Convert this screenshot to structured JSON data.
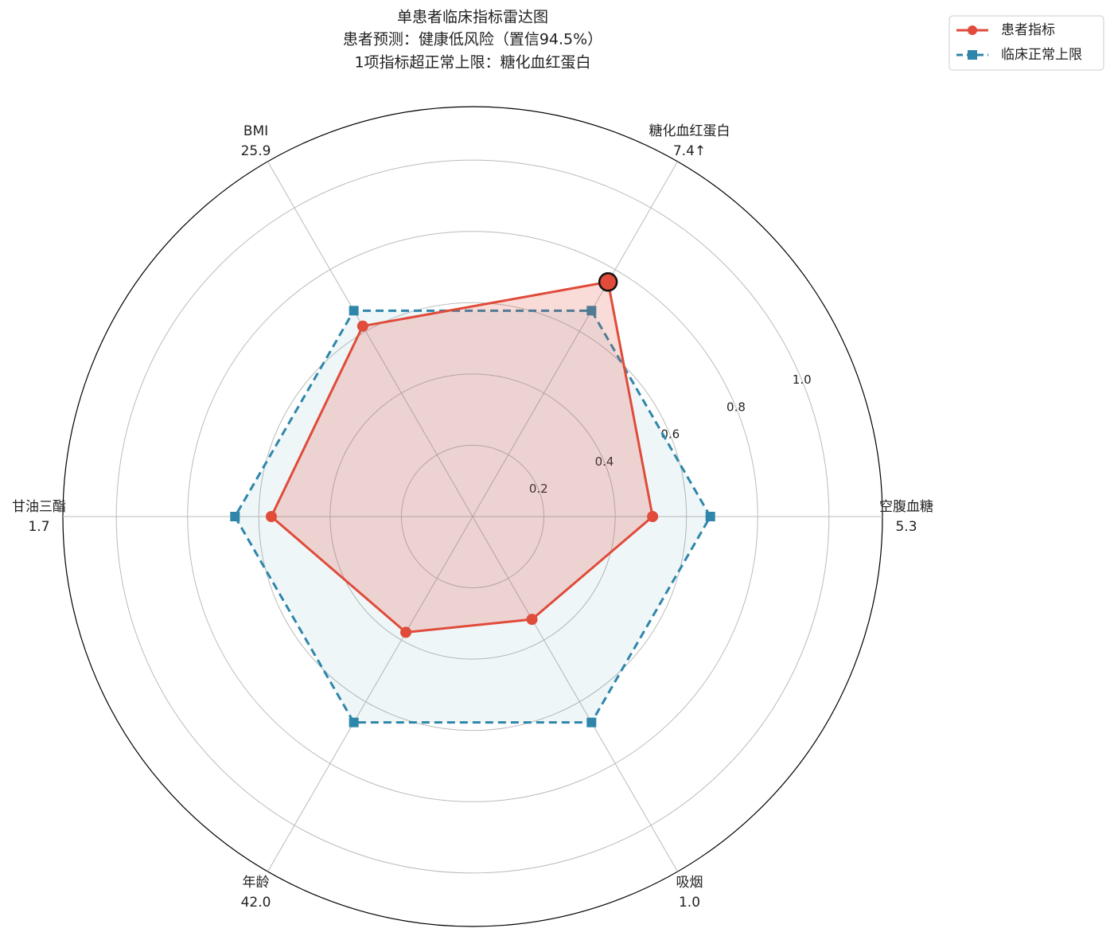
{
  "chart_data": {
    "type": "radar",
    "title": [
      "单患者临床指标雷达图",
      "患者预测：健康低风险（置信94.5%）",
      "1项指标超正常上限：糖化血红蛋白"
    ],
    "categories": [
      "空腹血糖",
      "糖化血红蛋白",
      "BMI",
      "甘油三酯",
      "年龄",
      "吸烟"
    ],
    "category_values": [
      "5.3",
      "7.4↑",
      "25.9",
      "1.7",
      "42.0",
      "1.0"
    ],
    "series": [
      {
        "name": "患者指标",
        "color": "#e04b3a",
        "marker": "circle",
        "dashed": false,
        "values": [
          0.505,
          0.76,
          0.617,
          0.565,
          0.375,
          0.333
        ]
      },
      {
        "name": "临床正常上限",
        "color": "#2e86ab",
        "marker": "square",
        "dashed": true,
        "values": [
          0.667,
          0.667,
          0.667,
          0.667,
          0.667,
          0.667
        ]
      }
    ],
    "highlight": {
      "series": 0,
      "index": 1
    },
    "rlim": [
      0,
      1.15
    ],
    "rticks": [
      0.2,
      0.4,
      0.6,
      0.8,
      {
        "value": 1,
        "label": "1.0"
      }
    ],
    "grid": true,
    "legend": "upper right"
  }
}
